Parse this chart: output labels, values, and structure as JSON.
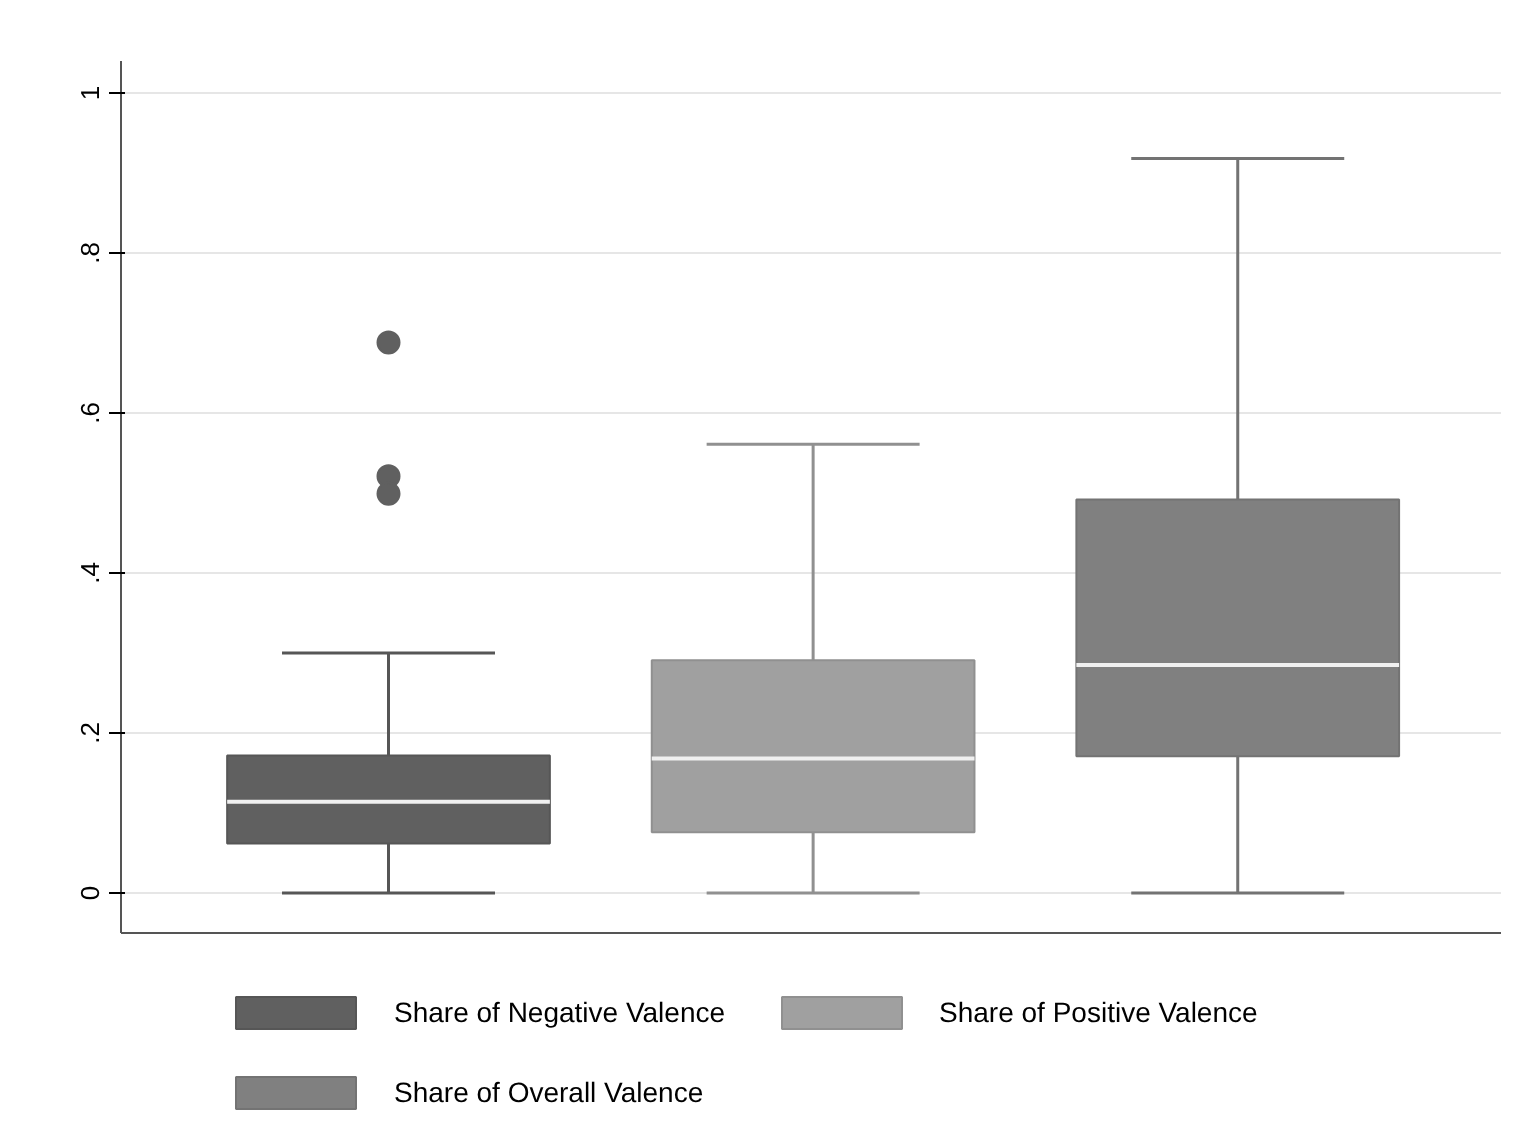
{
  "chart_data": {
    "type": "box",
    "categories": [
      null
    ],
    "ylim": [
      -0.05,
      1.04
    ],
    "yticks": [
      {
        "value": 0,
        "label": "0"
      },
      {
        "value": 0.2,
        "label": ".2"
      },
      {
        "value": 0.4,
        "label": ".4"
      },
      {
        "value": 0.6,
        "label": ".6"
      },
      {
        "value": 0.8,
        "label": ".8"
      },
      {
        "value": 1,
        "label": "1"
      }
    ],
    "grid": "y",
    "legend": "bottom",
    "tick_labels": "y",
    "series": [
      {
        "name": "Share of Negative Valence",
        "color": "#606060",
        "boxes": [
          {
            "low": 0,
            "q1": 0.062,
            "median": 0.114,
            "q3": 0.172,
            "high": 0.3,
            "outliers": [
              0.688,
              0.521,
              0.499
            ]
          }
        ]
      },
      {
        "name": "Share of Positive Valence",
        "color": "#a0a0a0",
        "boxes": [
          {
            "low": 0,
            "q1": 0.076,
            "median": 0.168,
            "q3": 0.291,
            "high": 0.561
          }
        ]
      },
      {
        "name": "Share of Overall Valence",
        "color": "#808080",
        "boxes": [
          {
            "low": 0,
            "q1": 0.171,
            "median": 0.285,
            "q3": 0.492,
            "high": 0.918
          }
        ]
      }
    ]
  }
}
